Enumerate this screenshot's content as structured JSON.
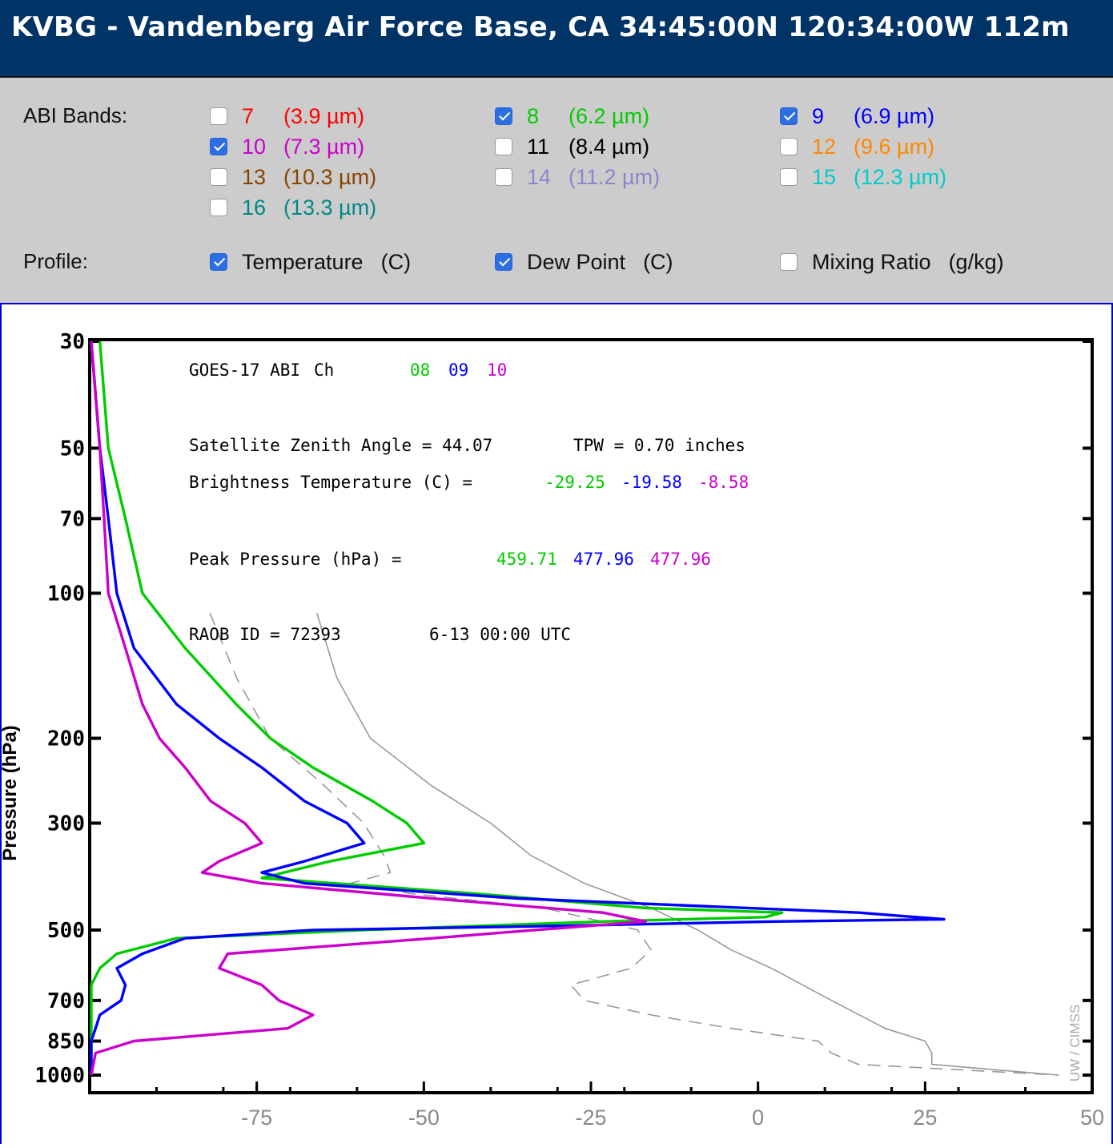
{
  "header": {
    "title": "KVBG - Vandenberg Air Force Base, CA 34:45:00N 120:34:00W 112m"
  },
  "controls": {
    "bands_label": "ABI Bands:",
    "bands": [
      {
        "num": "7",
        "wl": "(3.9 µm)",
        "checked": false,
        "color": "#ff0000"
      },
      {
        "num": "8",
        "wl": "(6.2 µm)",
        "checked": true,
        "color": "#00cc00"
      },
      {
        "num": "9",
        "wl": "(6.9 µm)",
        "checked": true,
        "color": "#0000ff"
      },
      {
        "num": "10",
        "wl": "(7.3 µm)",
        "checked": true,
        "color": "#cc00cc"
      },
      {
        "num": "11",
        "wl": "(8.4 µm)",
        "checked": false,
        "color": "#000000"
      },
      {
        "num": "12",
        "wl": "(9.6 µm)",
        "checked": false,
        "color": "#ff8800"
      },
      {
        "num": "13",
        "wl": "(10.3 µm)",
        "checked": false,
        "color": "#884400"
      },
      {
        "num": "14",
        "wl": "(11.2 µm)",
        "checked": false,
        "color": "#8888cc"
      },
      {
        "num": "15",
        "wl": "(12.3 µm)",
        "checked": false,
        "color": "#00cccc"
      },
      {
        "num": "16",
        "wl": "(13.3 µm)",
        "checked": false,
        "color": "#008888"
      }
    ],
    "profile_label": "Profile:",
    "profiles": [
      {
        "label": "Temperature",
        "unit": "(C)",
        "checked": true
      },
      {
        "label": "Dew Point",
        "unit": "(C)",
        "checked": true
      },
      {
        "label": "Mixing Ratio",
        "unit": "(g/kg)",
        "checked": false
      }
    ]
  },
  "chart_data": {
    "type": "line",
    "ylabel": "Pressure (hPa)",
    "y_scale": "log",
    "y_ticks": [
      30,
      50,
      70,
      100,
      200,
      300,
      500,
      700,
      850,
      1000
    ],
    "x_ticks": [
      -75,
      -50,
      -25,
      0,
      25,
      50
    ],
    "xlim": [
      -100,
      50
    ],
    "ylim": [
      1000,
      30
    ],
    "credit": "UW / CIMSS",
    "annotations": {
      "instrument": "GOES-17 ABI",
      "ch_label": "Ch",
      "channels": [
        {
          "label": "08",
          "color": "#00cc00"
        },
        {
          "label": "09",
          "color": "#0000ff"
        },
        {
          "label": "10",
          "color": "#cc00cc"
        }
      ],
      "zenith": "Satellite Zenith Angle = 44.07",
      "tpw": "TPW = 0.70 inches",
      "bt_label": "Brightness Temperature (C) =",
      "bt_values": [
        "-29.25",
        "-19.58",
        "-8.58"
      ],
      "peak_label": "Peak Pressure (hPa) =",
      "peak_values": [
        "459.71",
        "477.96",
        "477.96"
      ],
      "raob": "RAOB ID = 72393",
      "time": "6-13 00:00 UTC"
    },
    "temperature": {
      "name": "Temperature",
      "color": "#999999",
      "p": [
        110,
        150,
        200,
        250,
        300,
        350,
        400,
        450,
        500,
        550,
        600,
        700,
        800,
        850,
        900,
        950,
        1000
      ],
      "t": [
        -66,
        -63,
        -58,
        -49,
        -40,
        -34,
        -26,
        -16,
        -9,
        -4,
        2,
        11,
        19,
        25,
        26,
        26,
        45
      ]
    },
    "dewpoint": {
      "name": "Dew Point",
      "color": "#999999",
      "p": [
        110,
        150,
        200,
        250,
        300,
        350,
        380,
        400,
        420,
        450,
        500,
        550,
        600,
        650,
        700,
        750,
        800,
        850,
        900,
        950,
        1000
      ],
      "t": [
        -82,
        -78,
        -73,
        -65,
        -59,
        -56,
        -55,
        -61,
        -52,
        -32,
        -18,
        -16,
        -19,
        -28,
        -26,
        -16,
        -4,
        9,
        11,
        15,
        45
      ]
    },
    "weighting_functions": [
      {
        "name": "08",
        "color": "#00cc00",
        "p": [
          30,
          50,
          70,
          100,
          130,
          170,
          200,
          230,
          270,
          300,
          330,
          360,
          390,
          420,
          450,
          460,
          470,
          480,
          500,
          520,
          560,
          600,
          650,
          700,
          750,
          800,
          850,
          900,
          1000
        ],
        "w": [
          0.01,
          0.02,
          0.04,
          0.06,
          0.11,
          0.17,
          0.21,
          0.26,
          0.33,
          0.37,
          0.39,
          0.28,
          0.2,
          0.45,
          0.65,
          0.81,
          0.79,
          0.6,
          0.32,
          0.1,
          0.03,
          0.01,
          0,
          0,
          0,
          0,
          0,
          0,
          0
        ]
      },
      {
        "name": "09",
        "color": "#0000ff",
        "p": [
          30,
          50,
          70,
          100,
          130,
          170,
          200,
          230,
          270,
          300,
          330,
          360,
          380,
          400,
          430,
          460,
          475,
          480,
          490,
          500,
          520,
          560,
          600,
          650,
          700,
          750,
          800,
          850,
          900,
          1000
        ],
        "w": [
          0.0,
          0.01,
          0.02,
          0.03,
          0.05,
          0.1,
          0.15,
          0.2,
          0.25,
          0.3,
          0.32,
          0.25,
          0.2,
          0.25,
          0.5,
          0.9,
          1.0,
          0.8,
          0.55,
          0.26,
          0.11,
          0.06,
          0.03,
          0.04,
          0.035,
          0.01,
          0.005,
          0,
          0,
          0
        ]
      },
      {
        "name": "10",
        "color": "#cc00cc",
        "p": [
          30,
          50,
          70,
          100,
          130,
          170,
          200,
          230,
          270,
          300,
          330,
          360,
          380,
          400,
          430,
          460,
          480,
          500,
          520,
          560,
          600,
          650,
          700,
          750,
          800,
          850,
          900,
          1000
        ],
        "w": [
          0.0,
          0.01,
          0.015,
          0.02,
          0.04,
          0.06,
          0.08,
          0.11,
          0.14,
          0.18,
          0.2,
          0.15,
          0.13,
          0.2,
          0.4,
          0.6,
          0.65,
          0.52,
          0.4,
          0.16,
          0.15,
          0.2,
          0.22,
          0.26,
          0.23,
          0.05,
          0.005,
          0
        ]
      }
    ]
  }
}
